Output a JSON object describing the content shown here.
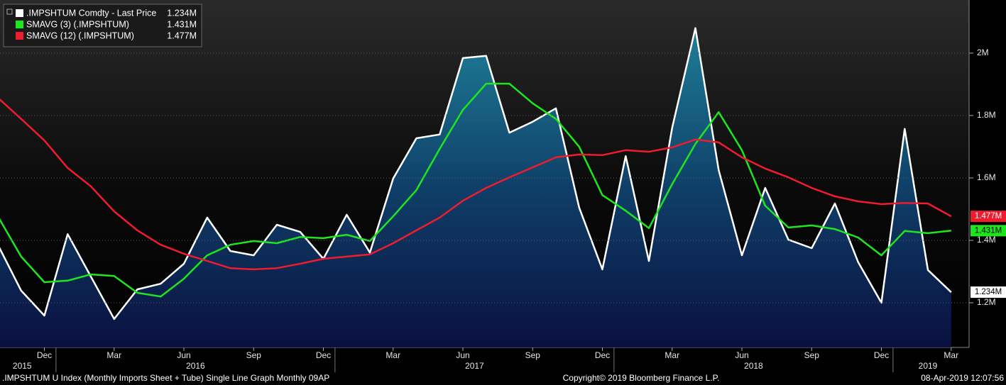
{
  "chart_data": {
    "type": "line",
    "categories": [
      null,
      null,
      "Dec",
      null,
      null,
      "Mar",
      null,
      null,
      "Jun",
      null,
      null,
      "Sep",
      null,
      null,
      "Dec",
      null,
      null,
      "Mar",
      null,
      null,
      "Jun",
      null,
      null,
      "Sep",
      null,
      null,
      "Dec",
      null,
      null,
      "Mar",
      null,
      null,
      "Jun",
      null,
      null,
      "Sep",
      null,
      null,
      "Dec",
      null,
      null,
      "Mar"
    ],
    "year_spans": [
      {
        "label": "2015",
        "months": 3
      },
      {
        "label": "2016",
        "months": 12
      },
      {
        "label": "2017",
        "months": 12
      },
      {
        "label": "2018",
        "months": 12
      },
      {
        "label": "2019",
        "months": 3
      }
    ],
    "series": [
      {
        "name": ".IMPSHTUM Comdty - Last Price",
        "color": "#ffffff",
        "area": true,
        "last_value_label": "1.234M",
        "values": [
          1.386,
          1.239,
          1.159,
          1.42,
          1.284,
          1.148,
          1.243,
          1.261,
          1.325,
          1.473,
          1.366,
          1.352,
          1.45,
          1.427,
          1.341,
          1.482,
          1.361,
          1.598,
          1.727,
          1.739,
          1.984,
          1.991,
          1.745,
          1.78,
          1.823,
          1.505,
          1.307,
          1.67,
          1.334,
          1.761,
          2.08,
          1.625,
          1.352,
          1.568,
          1.402,
          1.375,
          1.518,
          1.33,
          1.2,
          1.757,
          1.305,
          1.234
        ]
      },
      {
        "name": "SMAVG (3) (.IMPSHTUM)",
        "color": "#1ee61e",
        "last_value_label": "1.431M",
        "values": [
          1.477,
          1.348,
          1.266,
          1.271,
          1.291,
          1.286,
          1.232,
          1.22,
          1.277,
          1.352,
          1.386,
          1.398,
          1.391,
          1.411,
          1.407,
          1.418,
          1.398,
          1.477,
          1.561,
          1.693,
          1.818,
          1.902,
          1.902,
          1.839,
          1.789,
          1.7,
          1.545,
          1.495,
          1.439,
          1.58,
          1.709,
          1.811,
          1.689,
          1.511,
          1.441,
          1.448,
          1.436,
          1.409,
          1.352,
          1.43,
          1.423,
          1.431
        ]
      },
      {
        "name": "SMAVG (12) (.IMPSHTUM)",
        "color": "#ee1c2e",
        "last_value_label": "1.477M",
        "values": [
          1.857,
          1.789,
          1.72,
          1.632,
          1.573,
          1.493,
          1.432,
          1.386,
          1.357,
          1.334,
          1.311,
          1.307,
          1.311,
          1.325,
          1.341,
          1.348,
          1.355,
          1.391,
          1.432,
          1.473,
          1.527,
          1.568,
          1.602,
          1.634,
          1.666,
          1.675,
          1.673,
          1.689,
          1.684,
          1.698,
          1.723,
          1.714,
          1.666,
          1.63,
          1.602,
          1.568,
          1.541,
          1.525,
          1.516,
          1.52,
          1.518,
          1.477
        ]
      }
    ],
    "ylim": [
      1.057,
      2.17
    ],
    "yticks": [
      {
        "value": 1.2,
        "label": "1.2M"
      },
      {
        "value": 1.4,
        "label": "1.4M"
      },
      {
        "value": 1.6,
        "label": "1.6M"
      },
      {
        "value": 1.8,
        "label": "1.8M"
      },
      {
        "value": 2,
        "label": "2M"
      }
    ],
    "grid": true,
    "legend": "upper left"
  },
  "footer": {
    "left": ".IMPSHTUM U Index (Monthly Imports Sheet + Tube) Single Line Graph  Monthly 09AP",
    "center": "Copyright© 2019 Bloomberg Finance L.P.",
    "right": "08-Apr-2019 12:07:56"
  }
}
